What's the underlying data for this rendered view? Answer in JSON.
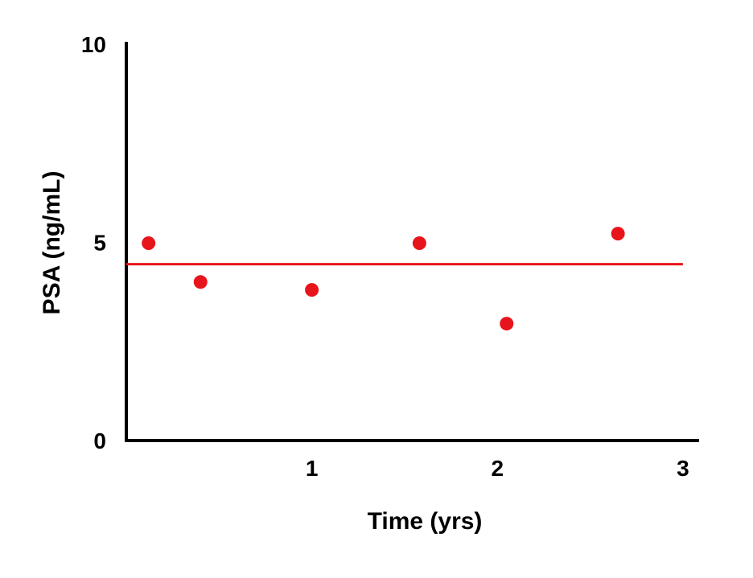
{
  "chart_data": {
    "type": "scatter",
    "title": "",
    "xlabel": "Time (yrs)",
    "ylabel": "PSA (ng/mL)",
    "xlim": [
      0,
      3.07
    ],
    "ylim": [
      0,
      10
    ],
    "x_ticks": [
      1,
      2,
      3
    ],
    "y_ticks": [
      0,
      5,
      10
    ],
    "grid": false,
    "legend": "none",
    "series": [
      {
        "color": "#e8141c",
        "points": [
          {
            "x": 0.12,
            "y": 4.98
          },
          {
            "x": 0.4,
            "y": 4.0
          },
          {
            "x": 1.0,
            "y": 3.8
          },
          {
            "x": 1.58,
            "y": 4.98
          },
          {
            "x": 2.05,
            "y": 2.95
          },
          {
            "x": 2.65,
            "y": 5.22
          }
        ]
      }
    ],
    "reference_line": {
      "y": 4.45,
      "x_start": 0.0,
      "x_end": 3.0,
      "color": "#e8141c"
    }
  }
}
